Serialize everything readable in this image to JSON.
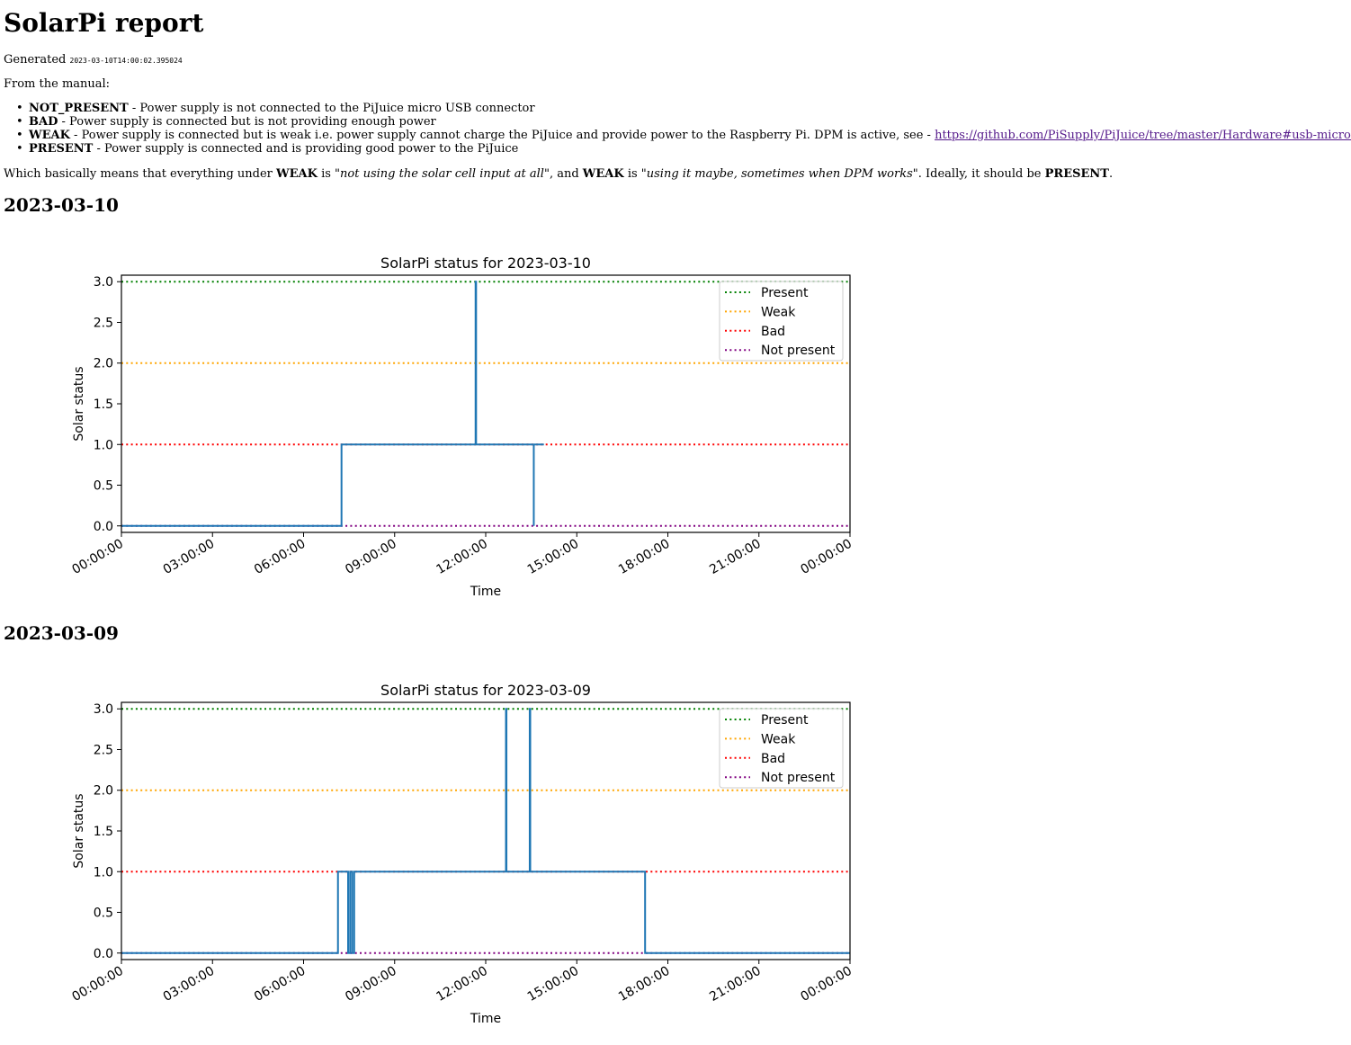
{
  "report": {
    "title": "SolarPi report",
    "generated_label": "Generated",
    "generated_timestamp": "2023-03-10T14:00:02.395024",
    "manual_intro": "From the manual:",
    "definitions": [
      {
        "term": "NOT_PRESENT",
        "text": " - Power supply is not connected to the PiJuice micro USB connector",
        "link": ""
      },
      {
        "term": "BAD",
        "text": " - Power supply is connected but is not providing enough power",
        "link": ""
      },
      {
        "term": "WEAK",
        "text": " - Power supply is connected but is weak i.e. power supply cannot charge the PiJuice and provide power to the Raspberry Pi. DPM is active, see - ",
        "link": "https://github.com/PiSupply/PiJuice/tree/master/Hardware#usb-micro-input"
      },
      {
        "term": "PRESENT",
        "text": " - Power supply is connected and is providing good power to the PiJuice",
        "link": ""
      }
    ],
    "summary": {
      "part1": "Which basically means that everything under ",
      "term1": "WEAK",
      "part2": " is ",
      "quote1": "\"not using the solar cell input at all\"",
      "part3": ", and ",
      "term2": "WEAK",
      "part4": " is ",
      "quote2": "\"using it maybe, sometimes when DPM works\"",
      "part5": ". Ideally, it should be ",
      "term3": "PRESENT",
      "part6": "."
    }
  },
  "days": [
    {
      "heading": "2023-03-10"
    },
    {
      "heading": "2023-03-09"
    }
  ],
  "chart_data": [
    {
      "type": "line",
      "title": "SolarPi status for 2023-03-10",
      "xlabel": "Time",
      "ylabel": "Solar status",
      "xlim": [
        "00:00:00",
        "24:00:00"
      ],
      "ylim": [
        -0.08,
        3.08
      ],
      "x_ticks": [
        "00:00:00",
        "03:00:00",
        "06:00:00",
        "09:00:00",
        "12:00:00",
        "15:00:00",
        "18:00:00",
        "21:00:00",
        "00:00:00"
      ],
      "y_ticks": [
        "0.0",
        "0.5",
        "1.0",
        "1.5",
        "2.0",
        "2.5",
        "3.0"
      ],
      "grid": false,
      "legend_position": "top-right",
      "reference_lines": [
        {
          "name": "Present",
          "y": 3,
          "color": "#008000",
          "style": "dotted"
        },
        {
          "name": "Weak",
          "y": 2,
          "color": "#ffa500",
          "style": "dotted"
        },
        {
          "name": "Bad",
          "y": 1,
          "color": "#ff0000",
          "style": "dotted"
        },
        {
          "name": "Not present",
          "y": 0,
          "color": "#800080",
          "style": "dotted"
        }
      ],
      "series": [
        {
          "color": "#1f77b4",
          "x": [
            "00:00",
            "07:15",
            "07:15",
            "11:40",
            "11:40",
            "11:41",
            "11:41",
            "13:35",
            "13:35",
            "13:35",
            "13:35",
            "13:55"
          ],
          "y": [
            0,
            0,
            1,
            1,
            3,
            3,
            1,
            1,
            0,
            0,
            1,
            1
          ]
        }
      ]
    },
    {
      "type": "line",
      "title": "SolarPi status for 2023-03-09",
      "xlabel": "Time",
      "ylabel": "Solar status",
      "xlim": [
        "00:00:00",
        "24:00:00"
      ],
      "ylim": [
        -0.08,
        3.08
      ],
      "x_ticks": [
        "00:00:00",
        "03:00:00",
        "06:00:00",
        "09:00:00",
        "12:00:00",
        "15:00:00",
        "18:00:00",
        "21:00:00",
        "00:00:00"
      ],
      "y_ticks": [
        "0.0",
        "0.5",
        "1.0",
        "1.5",
        "2.0",
        "2.5",
        "3.0"
      ],
      "grid": false,
      "legend_position": "top-right",
      "reference_lines": [
        {
          "name": "Present",
          "y": 3,
          "color": "#008000",
          "style": "dotted"
        },
        {
          "name": "Weak",
          "y": 2,
          "color": "#ffa500",
          "style": "dotted"
        },
        {
          "name": "Bad",
          "y": 1,
          "color": "#ff0000",
          "style": "dotted"
        },
        {
          "name": "Not present",
          "y": 0,
          "color": "#800080",
          "style": "dotted"
        }
      ],
      "series": [
        {
          "color": "#1f77b4",
          "x": [
            "00:00",
            "07:08",
            "07:08",
            "07:28",
            "07:28",
            "07:32",
            "07:32",
            "07:36",
            "07:36",
            "07:40",
            "07:40",
            "07:43",
            "07:43",
            "12:40",
            "12:40",
            "12:41",
            "12:41",
            "13:27",
            "13:27",
            "13:28",
            "13:28",
            "17:15",
            "17:15",
            "24:00"
          ],
          "y": [
            0,
            0,
            1,
            1,
            0,
            0,
            1,
            1,
            0,
            0,
            1,
            1,
            1,
            1,
            3,
            3,
            1,
            1,
            3,
            3,
            1,
            1,
            0,
            0
          ]
        }
      ]
    }
  ]
}
